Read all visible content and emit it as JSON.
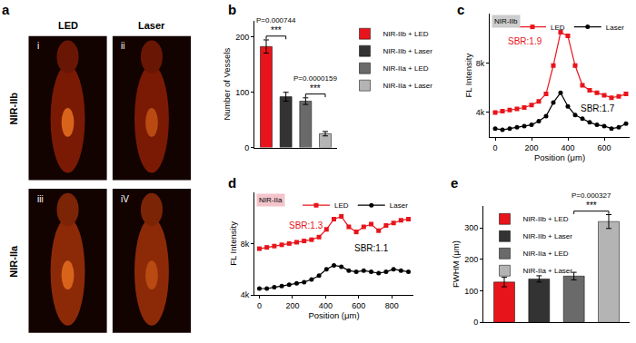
{
  "chart_data": [
    {
      "type": "image",
      "title": "a",
      "column_labels": [
        "LED",
        "Laser"
      ],
      "row_labels": [
        "NIR-IIb",
        "NIR-IIa"
      ],
      "image_labels": [
        "i",
        "ii",
        "iii",
        "iV"
      ]
    },
    {
      "type": "bar",
      "title": "b",
      "categories": [
        "NIR-IIb + LED",
        "NIR-IIb + Laser",
        "NIR-IIa + LED",
        "NIR-IIa + Laser"
      ],
      "values": [
        183,
        92,
        84,
        25
      ],
      "errors": [
        12,
        8,
        6,
        4
      ],
      "colors": [
        "#e8141b",
        "#333333",
        "#6a6a6a",
        "#b4b4b4"
      ],
      "y_label": "Number of Vessels",
      "ylim": [
        0,
        230
      ],
      "yticks": [
        0,
        100,
        200
      ],
      "tick_labels": "y",
      "legend": "right",
      "annotations": [
        {
          "text": "***",
          "between": [
            "NIR-IIb + LED",
            "NIR-IIb + Laser"
          ]
        },
        {
          "text": "P=0.000744",
          "between": [
            "NIR-IIb + LED",
            "NIR-IIb + Laser"
          ]
        },
        {
          "text": "***",
          "between": [
            "NIR-IIa + LED",
            "NIR-IIa + Laser"
          ]
        },
        {
          "text": "P=0.0000159",
          "between": [
            "NIR-IIa + LED",
            "NIR-IIa + Laser"
          ]
        }
      ]
    },
    {
      "type": "line",
      "title": "c",
      "x": [
        0,
        40,
        80,
        120,
        160,
        200,
        240,
        280,
        320,
        360,
        400,
        440,
        480,
        520,
        560,
        600,
        640,
        680,
        720
      ],
      "series": [
        {
          "name": "LED",
          "color": "#e8141b",
          "marker": "square",
          "values": [
            4000,
            4100,
            4200,
            4300,
            4400,
            4600,
            4900,
            5500,
            7800,
            10500,
            10200,
            7800,
            6200,
            5800,
            5600,
            5400,
            5200,
            5300,
            5500
          ]
        },
        {
          "name": "Laser",
          "color": "#000000",
          "marker": "circle",
          "values": [
            2700,
            2600,
            2700,
            2800,
            2900,
            3000,
            3300,
            3700,
            4800,
            5600,
            4500,
            3800,
            3500,
            3200,
            3000,
            2900,
            2700,
            2800,
            3100
          ]
        }
      ],
      "x_label": "Position (μm)",
      "y_label": "FL Intensity",
      "xlim": [
        -30,
        740
      ],
      "xticks": [
        0,
        200,
        400,
        600
      ],
      "ylim": [
        2000,
        12000
      ],
      "yticks": [
        {
          "value": 4000,
          "label": "4k"
        },
        {
          "value": 8000,
          "label": "8k"
        }
      ],
      "legend": "upper right",
      "annotations": [
        {
          "text": "NIR-IIb"
        },
        {
          "text": "SBR:1.9",
          "series": "LED"
        },
        {
          "text": "SBR:1.7",
          "series": "Laser"
        }
      ]
    },
    {
      "type": "line",
      "title": "d",
      "x": [
        0,
        45,
        90,
        135,
        180,
        225,
        270,
        315,
        360,
        405,
        450,
        495,
        540,
        585,
        630,
        675,
        720,
        765,
        810,
        855,
        900
      ],
      "series": [
        {
          "name": "LED",
          "color": "#e8141b",
          "marker": "square",
          "values": [
            7600,
            7700,
            7800,
            7900,
            8000,
            8100,
            8200,
            8300,
            8500,
            9100,
            9900,
            10100,
            9300,
            8900,
            9300,
            9500,
            9000,
            9400,
            9600,
            9800,
            9900
          ]
        },
        {
          "name": "Laser",
          "color": "#000000",
          "marker": "circle",
          "values": [
            4500,
            4500,
            4600,
            4700,
            4800,
            4900,
            5000,
            5200,
            5500,
            6000,
            6300,
            6200,
            5900,
            5800,
            5900,
            5800,
            5700,
            5800,
            6000,
            5900,
            5800
          ]
        }
      ],
      "x_label": "Position (μm)",
      "y_label": "FL Intensity",
      "xlim": [
        -30,
        930
      ],
      "xticks": [
        0,
        200,
        400,
        600,
        800
      ],
      "ylim": [
        4000,
        12000
      ],
      "yticks": [
        {
          "value": 4000,
          "label": "4k"
        },
        {
          "value": 8000,
          "label": "8k"
        }
      ],
      "legend": "upper right",
      "annotations": [
        {
          "text": "NIR-IIa"
        },
        {
          "text": "SBR:1.3",
          "series": "LED"
        },
        {
          "text": "SBR:1.1",
          "series": "Laser"
        }
      ]
    },
    {
      "type": "bar",
      "title": "e",
      "categories": [
        "NIR-IIb + LED",
        "NIR-IIb + Laser",
        "NIR-IIa + LED",
        "NIR-IIa + Laser"
      ],
      "values": [
        128,
        138,
        147,
        320
      ],
      "errors": [
        15,
        10,
        12,
        22
      ],
      "colors": [
        "#e8141b",
        "#333333",
        "#6a6a6a",
        "#b4b4b4"
      ],
      "y_label": "FWHM (μm)",
      "ylim": [
        0,
        370
      ],
      "yticks": [
        0,
        100,
        200,
        300
      ],
      "tick_labels": "y",
      "legend": "upper left",
      "annotations": [
        {
          "text": "***",
          "between": [
            "NIR-IIa + LED",
            "NIR-IIa + Laser"
          ]
        },
        {
          "text": "P=0.000327",
          "between": [
            "NIR-IIa + LED",
            "NIR-IIa + Laser"
          ]
        }
      ]
    }
  ]
}
